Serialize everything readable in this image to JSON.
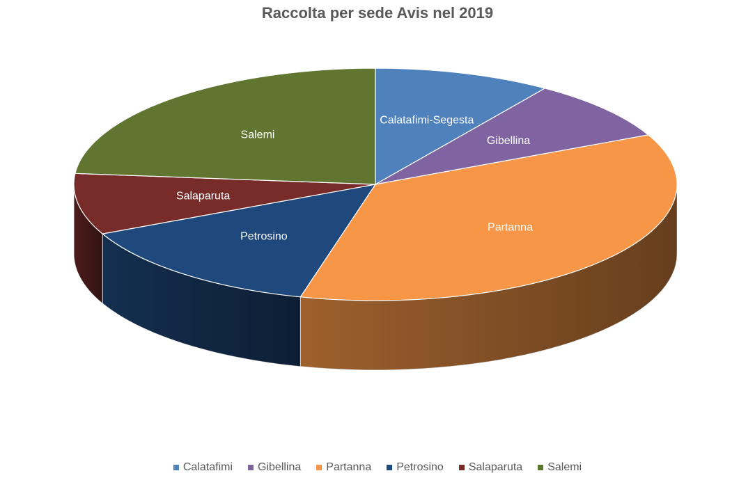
{
  "chart_data": {
    "type": "pie",
    "title": "Raccolta per sede Avis nel 2019",
    "categories": [
      "Calatafimi-Segesta",
      "Gibellina",
      "Partanna",
      "Petrosino",
      "Salaparuta",
      "Salemi"
    ],
    "legend_labels": [
      "Calatafimi",
      "Gibellina",
      "Partanna",
      "Petrosino",
      "Salaparuta",
      "Salemi"
    ],
    "values": [
      9.5,
      8.5,
      36.0,
      14.0,
      8.5,
      23.5
    ],
    "colors": [
      "#4F81BD",
      "#8064A2",
      "#F79646",
      "#1F497D",
      "#772C2A",
      "#5F7530"
    ],
    "legend_position": "bottom"
  }
}
